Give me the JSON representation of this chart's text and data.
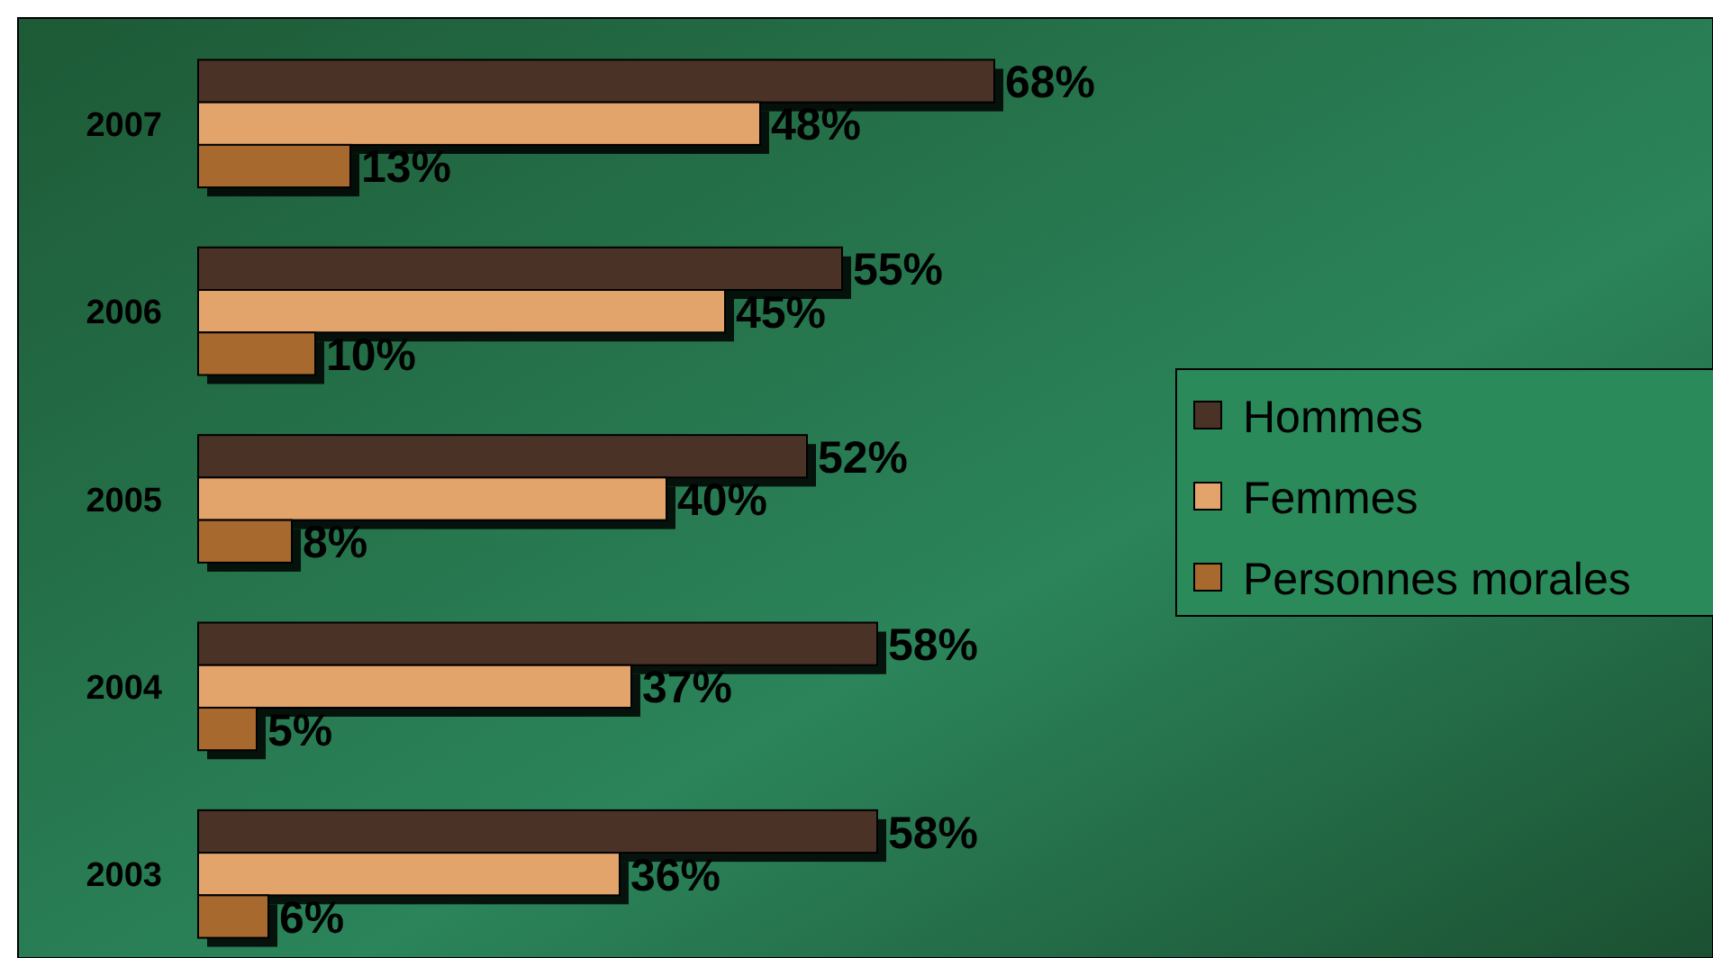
{
  "chart_data": {
    "type": "bar",
    "orientation": "horizontal",
    "categories": [
      "2007",
      "2006",
      "2005",
      "2004",
      "2003"
    ],
    "legend": "right",
    "series": [
      {
        "name": "Hommes",
        "color": "#4a3226",
        "values": [
          68,
          55,
          52,
          58,
          58
        ],
        "value_labels": [
          "68%",
          "55%",
          "52%",
          "58%",
          "58%"
        ]
      },
      {
        "name": "Femmes",
        "color": "#e3a46c",
        "values": [
          48,
          45,
          40,
          37,
          36
        ],
        "value_labels": [
          "48%",
          "45%",
          "40%",
          "37%",
          "36%"
        ]
      },
      {
        "name": "Personnes morales",
        "color": "#a8692f",
        "values": [
          13,
          10,
          8,
          5,
          6
        ],
        "value_labels": [
          "13%",
          "10%",
          "8%",
          "5%",
          "6%"
        ]
      }
    ]
  }
}
